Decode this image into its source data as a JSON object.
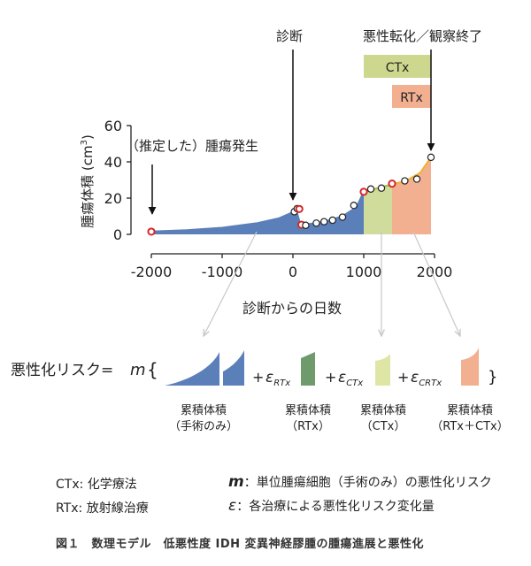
{
  "chart_data": {
    "type": "line",
    "xlabel": "診断からの日数",
    "ylabel": "腫瘍体積 (cm",
    "ylabel_sup": "3",
    "ylabel_close": ")",
    "xlim": [
      -2100,
      2100
    ],
    "ylim": [
      0,
      60
    ],
    "xticks": [
      -2000,
      -1000,
      0,
      1000,
      2000
    ],
    "xtick_labels": [
      "-2000",
      "-1000",
      "0",
      "1000",
      "2000"
    ],
    "yticks": [
      0,
      20,
      40,
      60
    ],
    "ytick_labels": [
      "0",
      "20",
      "40",
      "60"
    ],
    "fit_curve": {
      "segments": [
        {
          "name": "surgery-only-pre",
          "color": "#5b7fb8",
          "points": [
            [
              -2000,
              1.5
            ],
            [
              -1500,
              2.3
            ],
            [
              -1000,
              3.6
            ],
            [
              -500,
              6.2
            ],
            [
              -200,
              8.8
            ],
            [
              0,
              12.2
            ],
            [
              70,
              13.5
            ]
          ]
        },
        {
          "name": "surgery-only-post",
          "color": "#5b7fb8",
          "points": [
            [
              110,
              5.2
            ],
            [
              300,
              6.0
            ],
            [
              500,
              7.5
            ],
            [
              700,
              10.0
            ],
            [
              900,
              15.0
            ],
            [
              1000,
              23.5
            ]
          ]
        },
        {
          "name": "ctx",
          "color": "#9dbf4c",
          "points": [
            [
              1000,
              23.5
            ],
            [
              1200,
              25.5
            ],
            [
              1400,
              27.5
            ]
          ]
        },
        {
          "name": "crtx",
          "color": "#f0b23a",
          "points": [
            [
              1400,
              27.5
            ],
            [
              1600,
              29.5
            ],
            [
              1800,
              34
            ],
            [
              1950,
              42.5
            ]
          ]
        }
      ]
    },
    "observed_points": [
      {
        "x": -2000,
        "y": 1.5,
        "red": true
      },
      {
        "x": 20,
        "y": 12.5,
        "red": false
      },
      {
        "x": 60,
        "y": 14.2,
        "red": false
      },
      {
        "x": 90,
        "y": 14.0,
        "red": true
      },
      {
        "x": 120,
        "y": 5.3,
        "red": true
      },
      {
        "x": 180,
        "y": 5.0,
        "red": false
      },
      {
        "x": 330,
        "y": 6.2,
        "red": false
      },
      {
        "x": 440,
        "y": 7.0,
        "red": false
      },
      {
        "x": 560,
        "y": 7.8,
        "red": false
      },
      {
        "x": 700,
        "y": 9.5,
        "red": false
      },
      {
        "x": 860,
        "y": 16.0,
        "red": false
      },
      {
        "x": 1000,
        "y": 23.5,
        "red": true
      },
      {
        "x": 1100,
        "y": 25.0,
        "red": false
      },
      {
        "x": 1250,
        "y": 25.5,
        "red": false
      },
      {
        "x": 1400,
        "y": 28.0,
        "red": true
      },
      {
        "x": 1580,
        "y": 29.5,
        "red": false
      },
      {
        "x": 1750,
        "y": 30.5,
        "red": false
      },
      {
        "x": 1950,
        "y": 42.5,
        "red": false
      }
    ],
    "shaded_regions": [
      {
        "from": -2000,
        "to": 1000,
        "color": "#5b7fb8"
      },
      {
        "from": 1000,
        "to": 1400,
        "color": "#cfdc9c"
      },
      {
        "from": 1400,
        "to": 1950,
        "color": "#f2b091"
      }
    ],
    "treatment_bars": [
      {
        "label": "CTx",
        "from": 1000,
        "to": 1950,
        "color": "#cdd88e"
      },
      {
        "label": "RTx",
        "from": 1400,
        "to": 1950,
        "color": "#f2b091"
      }
    ],
    "annotations": {
      "onset": "（推定した）腫瘍発生",
      "diagnosis": "診断",
      "malignant": "悪性転化／観察終了"
    }
  },
  "formula": {
    "lhs": "悪性化リスク=",
    "m": "m",
    "open_brace": "{",
    "close_brace": "}",
    "plus": "+",
    "eps": "ε",
    "sub_rtx": "RTx",
    "sub_ctx": "CTx",
    "sub_crtx": "CRTx",
    "colors": {
      "surgery": "#5b7fb8",
      "rtx": "#6f9a6c",
      "ctx": "#dfe6a5",
      "crtx": "#f2b091"
    },
    "labels": [
      {
        "line1": "累積体積",
        "line2": "（手術のみ）"
      },
      {
        "line1": "累積体積",
        "line2": "（RTx）"
      },
      {
        "line1": "累積体積",
        "line2": "（CTx）"
      },
      {
        "line1": "累積体積",
        "line2": "（RTx＋CTx）"
      }
    ]
  },
  "legend": {
    "ctx": "CTx: 化学療法",
    "rtx": "RTx: 放射線治療",
    "m_symbol": "m",
    "m_desc": "：単位腫瘍細胞（手術のみ）の悪性化リスク",
    "eps_symbol": "ε",
    "eps_desc": "：各治療による悪性化リスク変化量"
  },
  "caption": "図１　数理モデル　低悪性度 IDH 変異神経膠腫の腫瘍進展と悪性化"
}
